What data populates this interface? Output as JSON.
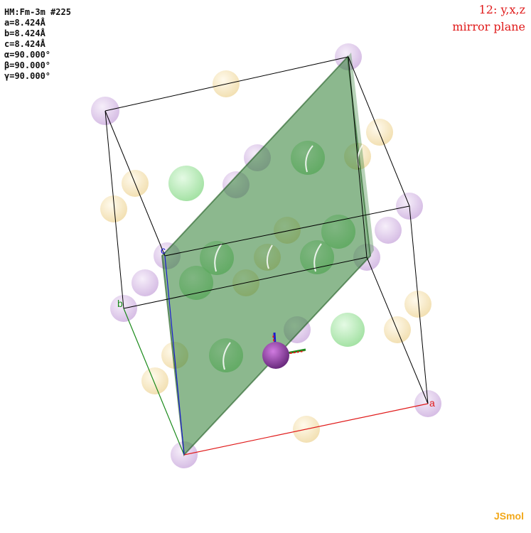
{
  "cell_info": {
    "space_group": "HM:Fm-3m #225",
    "a": "a=8.424Å",
    "b": "b=8.424Å",
    "c": "c=8.424Å",
    "alpha": "α=90.000°",
    "beta": "β=90.000°",
    "gamma": "γ=90.000°"
  },
  "symmetry": {
    "operation": "12: y,x,z",
    "type": "mirror plane"
  },
  "axes": {
    "a_label": "a",
    "b_label": "b",
    "c_label": "c"
  },
  "colors": {
    "axis_a": "#e01a1a",
    "axis_b": "#1a8a1a",
    "axis_c": "#1a1ad0",
    "plane": "#2e7d32",
    "atom_purple": "#c9a8dc",
    "atom_yellow": "#f5deaa",
    "atom_green": "#8fe08f",
    "atom_center": "#8b3a9e"
  },
  "brand": "JSmol"
}
